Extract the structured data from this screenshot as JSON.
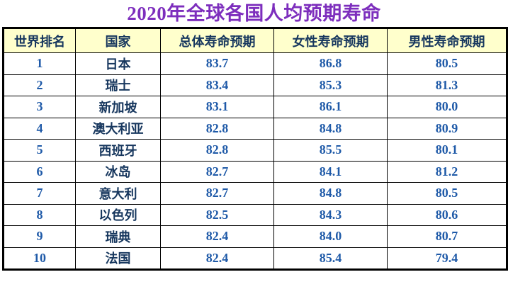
{
  "title": "2020年全球各国人均预期寿命",
  "colors": {
    "title_text": "#7D2EBD",
    "header_background": "#FFFFCC",
    "header_text": "#17375E",
    "country_text": "#17375E",
    "number_text": "#1F5AA8",
    "grid_border": "#000000",
    "page_background": "#FFFFFF"
  },
  "table": {
    "headers": [
      "世界排名",
      "国家",
      "总体寿命预期",
      "女性寿命预期",
      "男性寿命预期"
    ],
    "rows": [
      [
        "1",
        "日本",
        "83.7",
        "86.8",
        "80.5"
      ],
      [
        "2",
        "瑞士",
        "83.4",
        "85.3",
        "81.3"
      ],
      [
        "3",
        "新加坡",
        "83.1",
        "86.1",
        "80.0"
      ],
      [
        "4",
        "澳大利亚",
        "82.8",
        "84.8",
        "80.9"
      ],
      [
        "5",
        "西班牙",
        "82.8",
        "85.5",
        "80.1"
      ],
      [
        "6",
        "冰岛",
        "82.7",
        "84.1",
        "81.2"
      ],
      [
        "7",
        "意大利",
        "82.7",
        "84.8",
        "80.5"
      ],
      [
        "8",
        "以色列",
        "82.5",
        "84.3",
        "80.6"
      ],
      [
        "9",
        "瑞典",
        "82.4",
        "84.0",
        "80.7"
      ],
      [
        "10",
        "法国",
        "82.4",
        "85.4",
        "79.4"
      ]
    ]
  },
  "chart_data": {
    "type": "table",
    "title": "2020年全球各国人均预期寿命",
    "columns": [
      "世界排名",
      "国家",
      "总体寿命预期",
      "女性寿命预期",
      "男性寿命预期"
    ],
    "rows": [
      [
        1,
        "日本",
        83.7,
        86.8,
        80.5
      ],
      [
        2,
        "瑞士",
        83.4,
        85.3,
        81.3
      ],
      [
        3,
        "新加坡",
        83.1,
        86.1,
        80.0
      ],
      [
        4,
        "澳大利亚",
        82.8,
        84.8,
        80.9
      ],
      [
        5,
        "西班牙",
        82.8,
        85.5,
        80.1
      ],
      [
        6,
        "冰岛",
        82.7,
        84.1,
        81.2
      ],
      [
        7,
        "意大利",
        82.7,
        84.8,
        80.5
      ],
      [
        8,
        "以色列",
        82.5,
        84.3,
        80.6
      ],
      [
        9,
        "瑞典",
        82.4,
        84.0,
        80.7
      ],
      [
        10,
        "法国",
        82.4,
        85.4,
        79.4
      ]
    ]
  }
}
